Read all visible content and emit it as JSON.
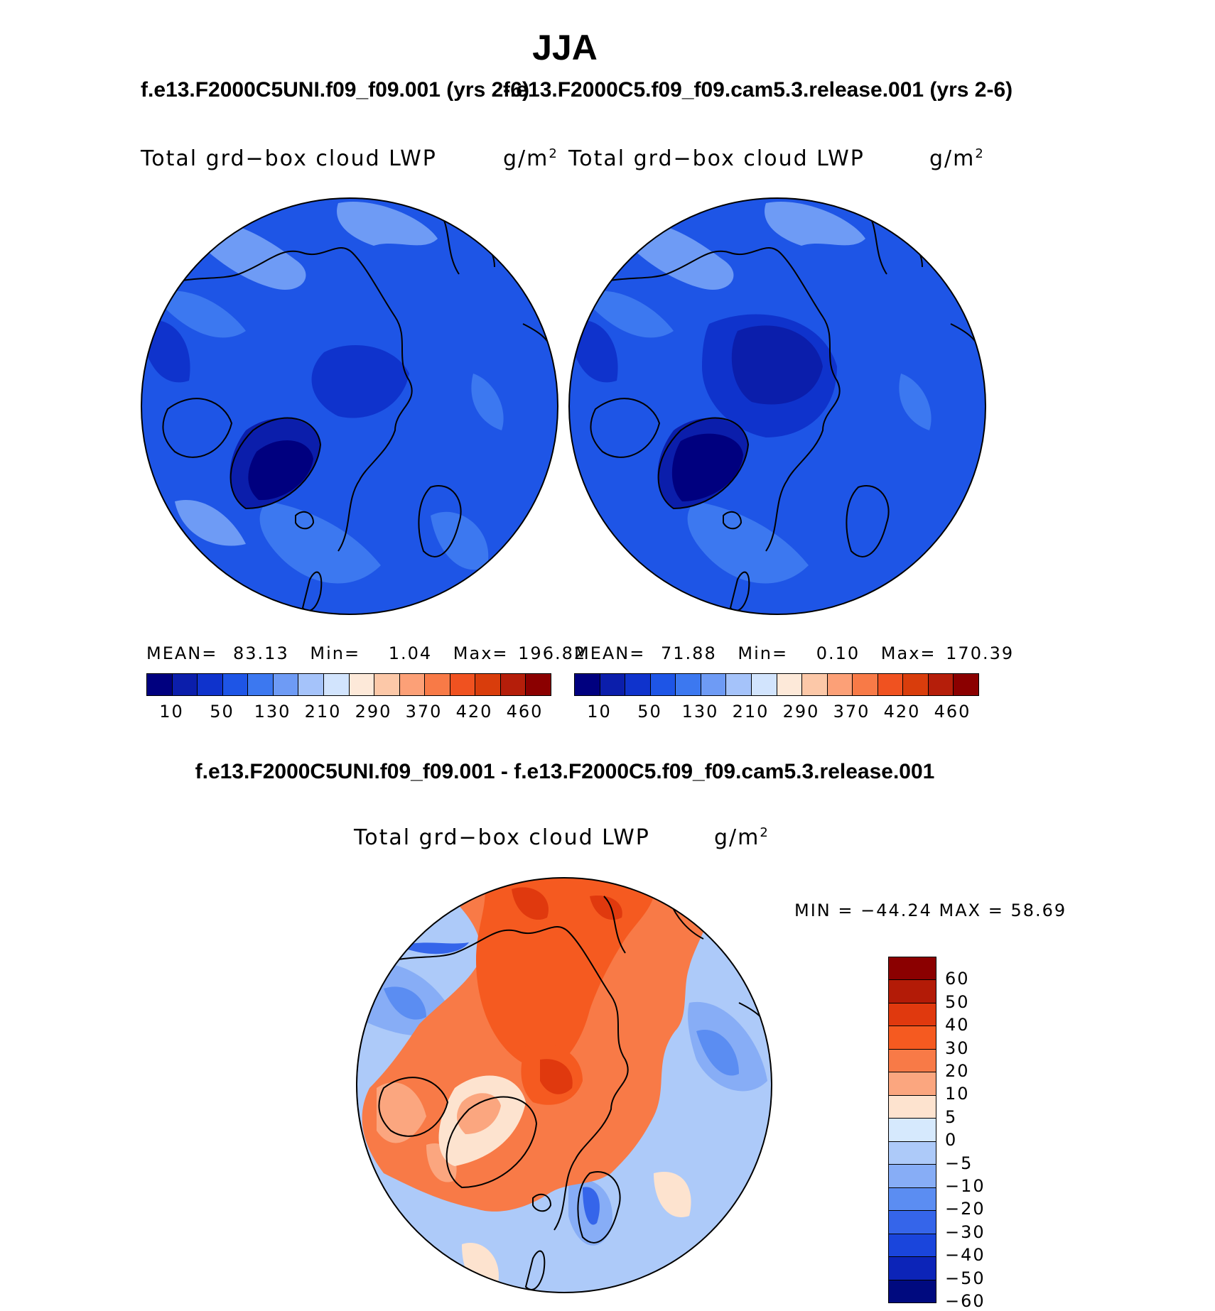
{
  "header": {
    "season": "JJA",
    "case1_title": "f.e13.F2000C5UNI.f09_f09.001 (yrs 2-6)",
    "case2_title": "f.e13.F2000C5.f09_f09.cam5.3.release.001 (yrs 2-6)",
    "diff_title": "f.e13.F2000C5UNI.f09_f09.001 - f.e13.F2000C5.f09_f09.cam5.3.release.001"
  },
  "panel1": {
    "variable": "Total grd−box cloud LWP",
    "units_base": "g/m",
    "units_exp": "2",
    "stats": {
      "mean_label": "MEAN=",
      "mean": "83.13",
      "min_label": "Min=",
      "min": "1.04",
      "max_label": "Max=",
      "max": "196.82"
    }
  },
  "panel2": {
    "variable": "Total grd−box cloud LWP",
    "units_base": "g/m",
    "units_exp": "2",
    "stats": {
      "mean_label": "MEAN=",
      "mean": "71.88",
      "min_label": "Min=",
      "min": "0.10",
      "max_label": "Max=",
      "max": "170.39"
    }
  },
  "panel3": {
    "variable": "Total grd−box cloud LWP",
    "units_base": "g/m",
    "units_exp": "2",
    "minmax": "MIN = −44.24 MAX =   58.69"
  },
  "abs_colorbar": {
    "colors": [
      "#00007f",
      "#0b1eab",
      "#0f33cc",
      "#1e55e6",
      "#3c78f0",
      "#6e9bf5",
      "#a5c3fa",
      "#d2e4fd",
      "#fde9d9",
      "#fcc8a8",
      "#fca077",
      "#f87a47",
      "#f05220",
      "#d93d0c",
      "#b51e0a",
      "#8b0000"
    ],
    "tick_labels": [
      "10",
      "50",
      "130",
      "210",
      "290",
      "370",
      "420",
      "460"
    ]
  },
  "diff_colorbar": {
    "colors": [
      "#8b0000",
      "#b31b07",
      "#e0390e",
      "#f55a20",
      "#f87a47",
      "#fba67f",
      "#fde3cf",
      "#d6e9fd",
      "#adcaf9",
      "#87adf6",
      "#5b8df2",
      "#3565ea",
      "#1a45dc",
      "#0c24b8",
      "#000a7f"
    ],
    "tick_labels": [
      "60",
      "50",
      "40",
      "30",
      "20",
      "10",
      "5",
      "0",
      "−5",
      "−10",
      "−20",
      "−30",
      "−40",
      "−50",
      "−60"
    ]
  },
  "map_colors": {
    "abs_base": "#1e55e6",
    "abs_dark1": "#0f33cc",
    "abs_dark2": "#0b1eab",
    "abs_darkest": "#00007f",
    "abs_light": "#3c78f0",
    "abs_lighter": "#6e9bf5",
    "diff_red_dark": "#e0390e",
    "diff_red": "#f55a20",
    "diff_orange": "#f87a47",
    "diff_peach": "#fba67f",
    "diff_cream": "#fde3cf",
    "diff_blue_light": "#adcaf9",
    "diff_blue": "#87adf6",
    "diff_blue_mid": "#5b8df2",
    "diff_blue_dark": "#3565ea"
  }
}
